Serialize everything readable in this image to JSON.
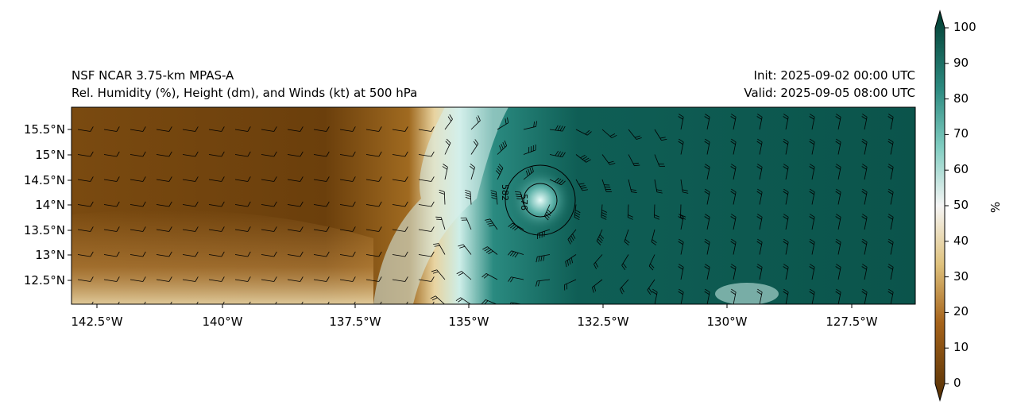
{
  "title": {
    "left_line1": "NSF NCAR 3.75-km MPAS-A",
    "left_line2": "Rel. Humidity (%), Height (dm), and Winds (kt) at 500 hPa",
    "right_line1": "Init: 2025-09-02 00:00 UTC",
    "right_line2": "Valid: 2025-09-05 08:00 UTC"
  },
  "map": {
    "lat_ticks": [
      "15.5°N",
      "15°N",
      "14.5°N",
      "14°N",
      "13.5°N",
      "13°N",
      "12.5°N"
    ],
    "lon_ticks": [
      "142.5°W",
      "140°W",
      "137.5°W",
      "135°W",
      "132.5°W",
      "130°W",
      "127.5°W"
    ],
    "contour_labels": [
      "582",
      "576"
    ]
  },
  "colorbar": {
    "label": "%",
    "ticks": [
      "100",
      "90",
      "80",
      "70",
      "60",
      "50",
      "40",
      "30",
      "20",
      "10",
      "0"
    ],
    "colors": {
      "low": "#543005",
      "mid": "#f5f5f5",
      "high": "#003c30"
    }
  }
}
